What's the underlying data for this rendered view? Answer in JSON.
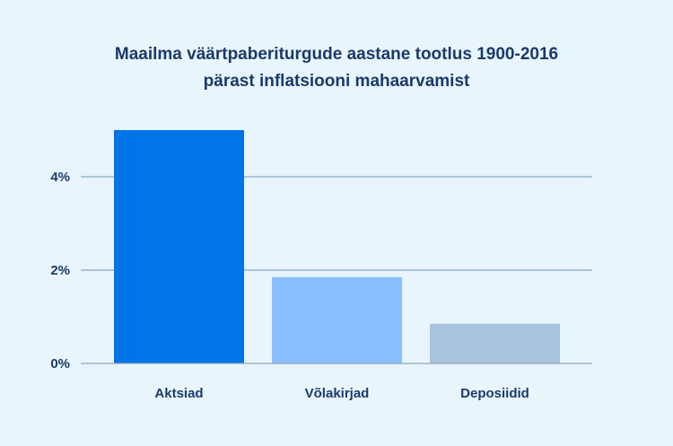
{
  "chart_data": {
    "type": "bar",
    "title": [
      "Maailma väärtpaberiturgude aastane tootlus 1900-2016",
      "pärast inflatsiooni mahaarvamist"
    ],
    "categories": [
      "Aktsiad",
      "Võlakirjad",
      "Deposiidid"
    ],
    "values": [
      5.0,
      1.85,
      0.85
    ],
    "bar_colors": [
      "#0073e6",
      "#8abfff",
      "#a9c3de"
    ],
    "yticks": [
      0,
      2,
      4
    ],
    "ytick_labels": [
      "0%",
      "2%",
      "4%"
    ],
    "ylim": [
      0,
      5.2
    ],
    "xlabel": "",
    "ylabel": "",
    "grid": true,
    "colors": {
      "background": "#e8f5fd",
      "text": "#1b3a6b",
      "grid": "#8fa7bd"
    }
  }
}
